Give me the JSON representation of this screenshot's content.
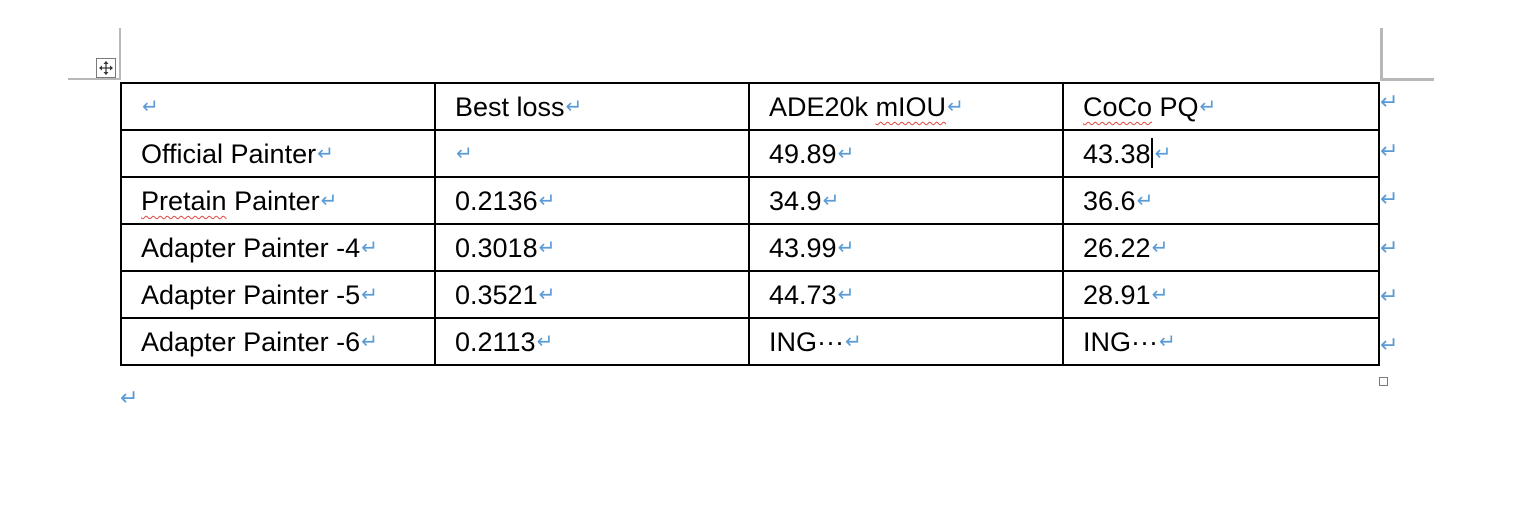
{
  "paragraph_mark": "↵",
  "table": {
    "header": [
      "",
      "Best loss",
      "ADE20k mIOU",
      "CoCo PQ"
    ],
    "rows": [
      [
        "Official Painter",
        "",
        "49.89",
        "43.38"
      ],
      [
        "Pretain Painter",
        "0.2136",
        "34.9",
        "36.6"
      ],
      [
        "Adapter Painter -4",
        "0.3018",
        "43.99",
        "26.22"
      ],
      [
        "Adapter Painter -5",
        "0.3521",
        "44.73",
        "28.91"
      ],
      [
        "Adapter Painter -6",
        "0.2113",
        "ING···",
        "ING···"
      ]
    ]
  },
  "colors": {
    "formatting_marks": "#5b9bd5",
    "spellcheck_underline": "#e0463c",
    "table_border": "#000000"
  },
  "icons": {
    "table_move_handle": "move-arrows-icon",
    "table_resize_handle": "resize-square-icon"
  }
}
